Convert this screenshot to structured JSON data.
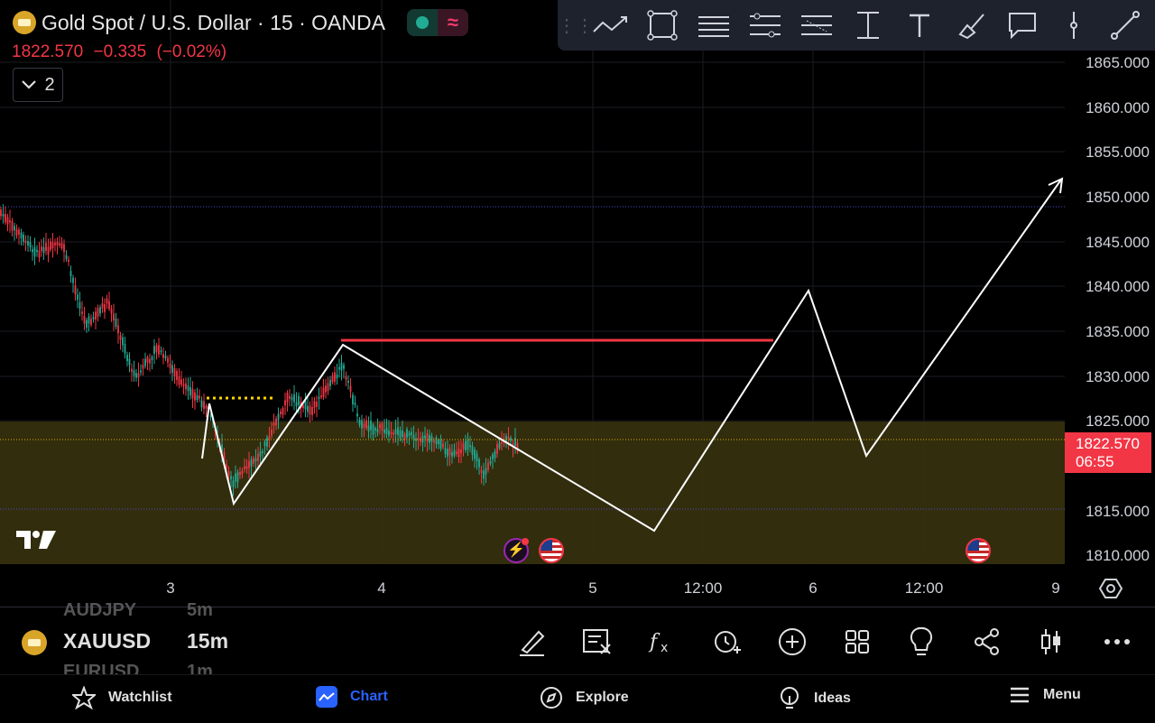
{
  "header": {
    "title": "Gold Spot / U.S. Dollar · 15 · OANDA",
    "last_price": "1822.570",
    "change": "−0.335",
    "change_pct": "(−0.02%)",
    "indicator_count": "2"
  },
  "toolbar": {
    "tools": [
      "trend-line-icon",
      "rectangle-icon",
      "parallel-channel-icon",
      "fib-retracement-icon",
      "pitchfork-icon",
      "measure-icon",
      "text-icon",
      "brush-icon",
      "callout-icon",
      "vertical-line-icon",
      "ray-icon"
    ]
  },
  "price_axis": {
    "labels": [
      "1865.000",
      "1860.000",
      "1855.000",
      "1850.000",
      "1845.000",
      "1840.000",
      "1835.000",
      "1830.000",
      "1825.000",
      "1815.000",
      "1810.000"
    ],
    "current_price": "1822.570",
    "countdown": "06:55"
  },
  "time_axis": {
    "labels": [
      "3",
      "4",
      "5",
      "12:00",
      "6",
      "12:00",
      "9"
    ]
  },
  "bottom_bar": {
    "ghost_above": "AUDJPY",
    "ghost_above_intv": "5m",
    "symbol": "XAUUSD",
    "interval": "15m",
    "ghost_below": "EURUSD",
    "ghost_below_intv": "1m",
    "actions": [
      "draw-icon",
      "delete-drawings-icon",
      "indicators-icon",
      "alert-icon",
      "add-icon",
      "layout-icon",
      "ideas-lightbulb-icon",
      "share-icon",
      "chart-type-icon",
      "more-icon"
    ]
  },
  "nav": {
    "watchlist": "Watchlist",
    "chart": "Chart",
    "explore": "Explore",
    "ideas": "Ideas",
    "menu": "Menu"
  },
  "colors": {
    "up": "#22ab94",
    "down": "#f23645",
    "zone": "#3a3410",
    "accent": "#2962ff"
  }
}
